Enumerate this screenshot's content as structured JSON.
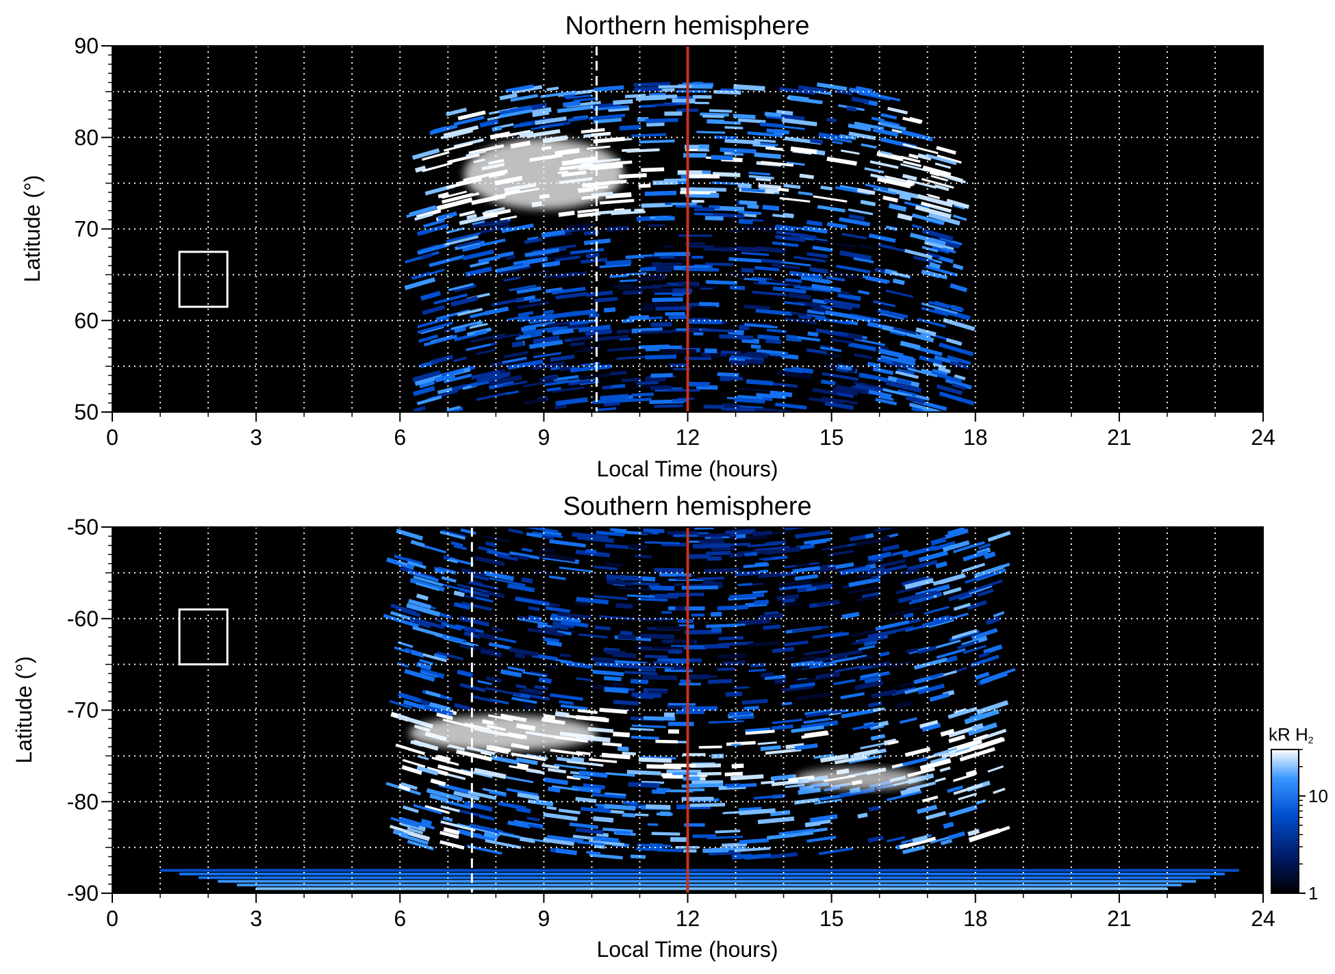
{
  "chart_data": [
    {
      "type": "heatmap",
      "title": "Northern hemisphere",
      "xlabel": "Local Time (hours)",
      "ylabel": "Latitude (°)",
      "xlim": [
        0,
        24
      ],
      "ylim": [
        50,
        90
      ],
      "xticks": [
        "0",
        "3",
        "6",
        "9",
        "12",
        "15",
        "18",
        "21",
        "24"
      ],
      "xtick_values": [
        0,
        3,
        6,
        9,
        12,
        15,
        18,
        21,
        24
      ],
      "yticks": [
        "50",
        "60",
        "70",
        "80",
        "90"
      ],
      "ytick_values": [
        50,
        60,
        70,
        80,
        90
      ],
      "grid": true,
      "grid_x_step_hours": 1,
      "grid_y_step_deg": 5,
      "noon_line_lt": 12,
      "noon_line_color": "#c8321e",
      "dashed_meridian_lt": 10.1,
      "box": {
        "lt_min": 1.4,
        "lt_max": 2.4,
        "lat_min": 61.5,
        "lat_max": 67.5
      },
      "coverage_lt": [
        6.4,
        17.7
      ],
      "main_oval_lat": 75,
      "bright_region": {
        "lt_min": 7.0,
        "lt_max": 11.0,
        "lat_min": 71,
        "lat_max": 81
      }
    },
    {
      "type": "heatmap",
      "title": "Southern hemisphere",
      "xlabel": "Local Time (hours)",
      "ylabel": "Latitude (°)",
      "xlim": [
        0,
        24
      ],
      "ylim": [
        -90,
        -50
      ],
      "xticks": [
        "0",
        "3",
        "6",
        "9",
        "12",
        "15",
        "18",
        "21",
        "24"
      ],
      "xtick_values": [
        0,
        3,
        6,
        9,
        12,
        15,
        18,
        21,
        24
      ],
      "yticks": [
        "-90",
        "-80",
        "-70",
        "-60",
        "-50"
      ],
      "ytick_values": [
        -90,
        -80,
        -70,
        -60,
        -50
      ],
      "grid": true,
      "grid_x_step_hours": 1,
      "grid_y_step_deg": 5,
      "noon_line_lt": 12,
      "noon_line_color": "#c8321e",
      "dashed_meridian_lt": 7.5,
      "box": {
        "lt_min": 1.4,
        "lt_max": 2.4,
        "lat_min": -65,
        "lat_max": -59
      },
      "coverage_lt": [
        6.0,
        18.5
      ],
      "main_oval_lat": -74,
      "bright_region": {
        "lt_min": 5.8,
        "lt_max": 10.5,
        "lat_min": -75,
        "lat_max": -70
      }
    }
  ],
  "colorbar": {
    "title": "kR H",
    "title_subscript": "2",
    "scale": "log",
    "range": [
      1,
      30
    ],
    "tick_labels": [
      "1",
      "10"
    ],
    "tick_values": [
      1,
      10
    ],
    "colors": [
      "#000000",
      "#001a66",
      "#0050d0",
      "#3a96ff",
      "#ffffff"
    ]
  },
  "colors": {
    "background": "#000000",
    "grid": "#ffffff",
    "noon_line": "#c8321e"
  }
}
